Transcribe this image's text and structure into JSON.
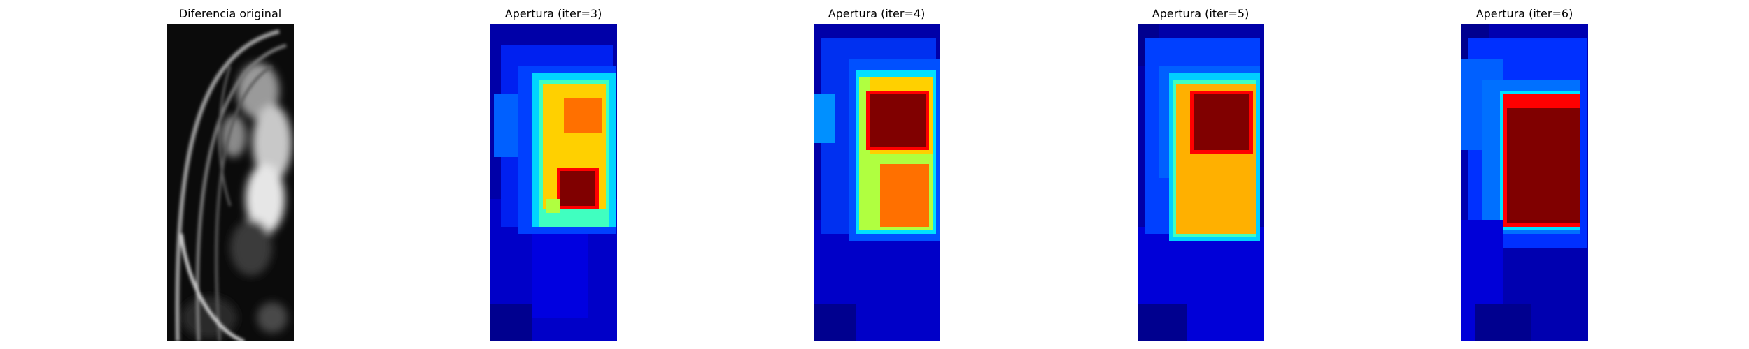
{
  "panels": [
    {
      "title": "Diferencia original",
      "colormap": "gray"
    },
    {
      "title": "Apertura (iter=3)",
      "colormap": "jet"
    },
    {
      "title": "Apertura (iter=4)",
      "colormap": "jet"
    },
    {
      "title": "Apertura (iter=5)",
      "colormap": "jet"
    },
    {
      "title": "Apertura (iter=6)",
      "colormap": "jet"
    }
  ],
  "colors": {
    "jet_dark_blue": "#00008f",
    "jet_blue": "#0000ff",
    "jet_mid_blue": "#0055ff",
    "jet_light_blue": "#0090ff",
    "jet_cyan": "#00ffff",
    "jet_yellow": "#ffd000",
    "jet_orange": "#ff7000",
    "jet_red": "#ff0000",
    "jet_dark_red": "#800000"
  }
}
